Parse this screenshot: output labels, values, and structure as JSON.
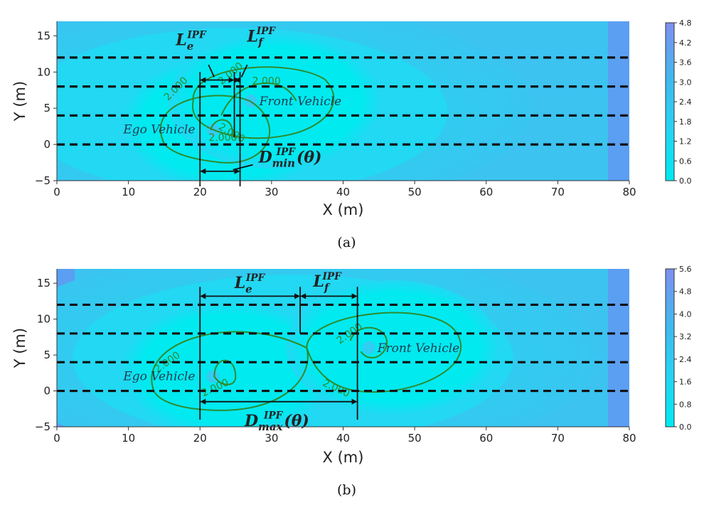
{
  "chart_data": [
    {
      "type": "heatmap",
      "panel_label": "(a)",
      "xlabel": "X (m)",
      "ylabel": "Y (m)",
      "xlim": [
        0,
        80
      ],
      "ylim": [
        -5,
        17
      ],
      "xticks": [
        "0",
        "10",
        "20",
        "30",
        "40",
        "50",
        "60",
        "70",
        "80"
      ],
      "yticks": [
        "−5",
        "0",
        "5",
        "10",
        "15"
      ],
      "colorbar_ticks": [
        "0.0",
        "0.6",
        "1.2",
        "1.8",
        "2.4",
        "3.0",
        "3.6",
        "4.2",
        "4.8"
      ],
      "colorbar_range": [
        0,
        4.8
      ],
      "lane_lines_y": [
        0,
        4,
        8,
        12
      ],
      "ego_vehicle": {
        "label": "Ego Vehicle",
        "x": 21,
        "y": 2
      },
      "front_vehicle": {
        "label": "Front Vehicle",
        "x": 26.5,
        "y": 6
      },
      "contour_label": "2.000",
      "markers_x": [
        20,
        24.8,
        25.6
      ],
      "annotations": {
        "le": {
          "base": "L",
          "sub": "e",
          "sup": "IPF"
        },
        "lf": {
          "base": "L",
          "sub": "f",
          "sup": "IPF"
        },
        "d": {
          "base": "D",
          "sub": "min",
          "sup": "IPF",
          "arg": "(θ)"
        }
      }
    },
    {
      "type": "heatmap",
      "panel_label": "(b)",
      "xlabel": "X (m)",
      "ylabel": "Y (m)",
      "xlim": [
        0,
        80
      ],
      "ylim": [
        -5,
        17
      ],
      "xticks": [
        "0",
        "10",
        "20",
        "30",
        "40",
        "50",
        "60",
        "70",
        "80"
      ],
      "yticks": [
        "−5",
        "0",
        "5",
        "10",
        "15"
      ],
      "colorbar_ticks": [
        "0.0",
        "0.8",
        "1.6",
        "2.4",
        "3.2",
        "4.0",
        "4.8",
        "5.6"
      ],
      "colorbar_range": [
        0,
        5.6
      ],
      "lane_lines_y": [
        0,
        4,
        8,
        12
      ],
      "ego_vehicle": {
        "label": "Ego Vehicle",
        "x": 21,
        "y": 2
      },
      "front_vehicle": {
        "label": "Front Vehicle",
        "x": 43,
        "y": 6
      },
      "contour_label": "2.000",
      "markers_x": [
        20,
        34,
        42
      ],
      "annotations": {
        "le": {
          "base": "L",
          "sub": "e",
          "sup": "IPF"
        },
        "lf": {
          "base": "L",
          "sub": "f",
          "sup": "IPF"
        },
        "d": {
          "base": "D",
          "sub": "max",
          "sup": "IPF",
          "arg": "(θ)"
        }
      }
    }
  ],
  "colors": {
    "field_low": "#00eaf0",
    "field_mid": "#22d8f2",
    "field_high": "#38c6f0",
    "field_peak": "#7f8ff0",
    "contour": "#2e8b2e",
    "lane": "#111111"
  }
}
